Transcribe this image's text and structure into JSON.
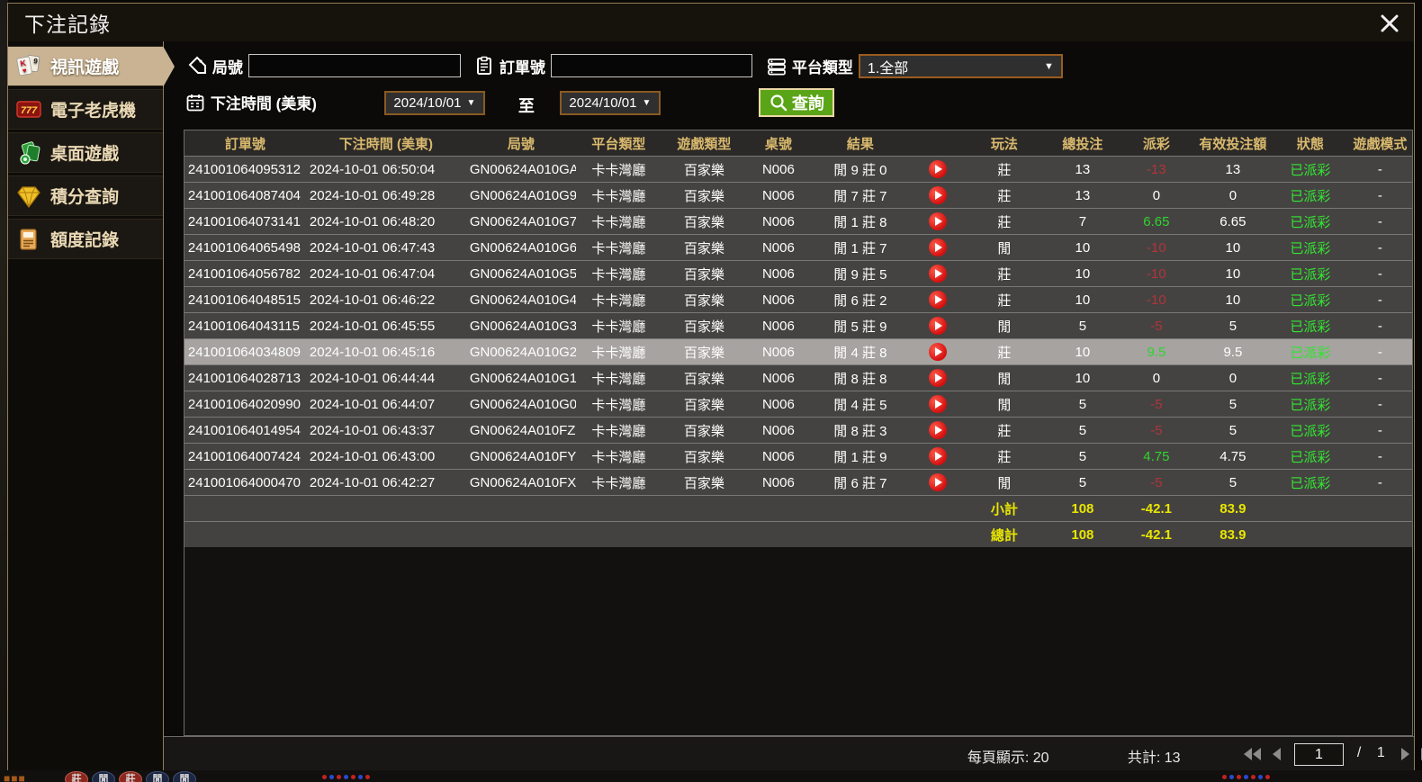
{
  "dialog": {
    "title": "下注記錄"
  },
  "sidebar": {
    "items": [
      {
        "label": "視訊遊戲",
        "icon": "cards-icon",
        "selected": true
      },
      {
        "label": "電子老虎機",
        "icon": "slots-777-icon",
        "selected": false
      },
      {
        "label": "桌面遊戲",
        "icon": "table-games-icon",
        "selected": false
      },
      {
        "label": "積分查詢",
        "icon": "points-diamond-icon",
        "selected": false
      },
      {
        "label": "額度記錄",
        "icon": "ledger-icon",
        "selected": false
      }
    ]
  },
  "filters": {
    "round_label": "局號",
    "round_value": "",
    "order_label": "訂單號",
    "order_value": "",
    "platform_label": "平台類型",
    "platform_value": "1.全部",
    "time_label": "下注時間 (美東)",
    "date_from": "2024/10/01",
    "to_label": "至",
    "date_to": "2024/10/01",
    "search_label": "查詢"
  },
  "table": {
    "headers": [
      "訂單號",
      "下注時間 (美東)",
      "局號",
      "平台類型",
      "遊戲類型",
      "桌號",
      "結果",
      "",
      "玩法",
      "總投注",
      "派彩",
      "有效投注額",
      "狀態",
      "遊戲模式"
    ],
    "rows": [
      {
        "order_no": "241001064095312",
        "bet_time": "2024-10-01 06:50:04",
        "round_no": "GN00624A010GA",
        "platform": "卡卡灣廳",
        "game_type": "百家樂",
        "table_no": "N006",
        "result": "閒 9 莊 0",
        "play_type": "莊",
        "total_bet": "13",
        "payout": "-13",
        "valid_bet": "13",
        "status": "已派彩",
        "mode": "-",
        "highlighted": false
      },
      {
        "order_no": "241001064087404",
        "bet_time": "2024-10-01 06:49:28",
        "round_no": "GN00624A010G9",
        "platform": "卡卡灣廳",
        "game_type": "百家樂",
        "table_no": "N006",
        "result": "閒 7 莊 7",
        "play_type": "莊",
        "total_bet": "13",
        "payout": "0",
        "valid_bet": "0",
        "status": "已派彩",
        "mode": "-",
        "highlighted": false
      },
      {
        "order_no": "241001064073141",
        "bet_time": "2024-10-01 06:48:20",
        "round_no": "GN00624A010G7",
        "platform": "卡卡灣廳",
        "game_type": "百家樂",
        "table_no": "N006",
        "result": "閒 1 莊 8",
        "play_type": "莊",
        "total_bet": "7",
        "payout": "6.65",
        "valid_bet": "6.65",
        "status": "已派彩",
        "mode": "-",
        "highlighted": false
      },
      {
        "order_no": "241001064065498",
        "bet_time": "2024-10-01 06:47:43",
        "round_no": "GN00624A010G6",
        "platform": "卡卡灣廳",
        "game_type": "百家樂",
        "table_no": "N006",
        "result": "閒 1 莊 7",
        "play_type": "閒",
        "total_bet": "10",
        "payout": "-10",
        "valid_bet": "10",
        "status": "已派彩",
        "mode": "-",
        "highlighted": false
      },
      {
        "order_no": "241001064056782",
        "bet_time": "2024-10-01 06:47:04",
        "round_no": "GN00624A010G5",
        "platform": "卡卡灣廳",
        "game_type": "百家樂",
        "table_no": "N006",
        "result": "閒 9 莊 5",
        "play_type": "莊",
        "total_bet": "10",
        "payout": "-10",
        "valid_bet": "10",
        "status": "已派彩",
        "mode": "-",
        "highlighted": false
      },
      {
        "order_no": "241001064048515",
        "bet_time": "2024-10-01 06:46:22",
        "round_no": "GN00624A010G4",
        "platform": "卡卡灣廳",
        "game_type": "百家樂",
        "table_no": "N006",
        "result": "閒 6 莊 2",
        "play_type": "莊",
        "total_bet": "10",
        "payout": "-10",
        "valid_bet": "10",
        "status": "已派彩",
        "mode": "-",
        "highlighted": false
      },
      {
        "order_no": "241001064043115",
        "bet_time": "2024-10-01 06:45:55",
        "round_no": "GN00624A010G3",
        "platform": "卡卡灣廳",
        "game_type": "百家樂",
        "table_no": "N006",
        "result": "閒 5 莊 9",
        "play_type": "閒",
        "total_bet": "5",
        "payout": "-5",
        "valid_bet": "5",
        "status": "已派彩",
        "mode": "-",
        "highlighted": false
      },
      {
        "order_no": "241001064034809",
        "bet_time": "2024-10-01 06:45:16",
        "round_no": "GN00624A010G2",
        "platform": "卡卡灣廳",
        "game_type": "百家樂",
        "table_no": "N006",
        "result": "閒 4 莊 8",
        "play_type": "莊",
        "total_bet": "10",
        "payout": "9.5",
        "valid_bet": "9.5",
        "status": "已派彩",
        "mode": "-",
        "highlighted": true
      },
      {
        "order_no": "241001064028713",
        "bet_time": "2024-10-01 06:44:44",
        "round_no": "GN00624A010G1",
        "platform": "卡卡灣廳",
        "game_type": "百家樂",
        "table_no": "N006",
        "result": "閒 8 莊 8",
        "play_type": "閒",
        "total_bet": "10",
        "payout": "0",
        "valid_bet": "0",
        "status": "已派彩",
        "mode": "-",
        "highlighted": false
      },
      {
        "order_no": "241001064020990",
        "bet_time": "2024-10-01 06:44:07",
        "round_no": "GN00624A010G0",
        "platform": "卡卡灣廳",
        "game_type": "百家樂",
        "table_no": "N006",
        "result": "閒 4 莊 5",
        "play_type": "閒",
        "total_bet": "5",
        "payout": "-5",
        "valid_bet": "5",
        "status": "已派彩",
        "mode": "-",
        "highlighted": false
      },
      {
        "order_no": "241001064014954",
        "bet_time": "2024-10-01 06:43:37",
        "round_no": "GN00624A010FZ",
        "platform": "卡卡灣廳",
        "game_type": "百家樂",
        "table_no": "N006",
        "result": "閒 8 莊 3",
        "play_type": "莊",
        "total_bet": "5",
        "payout": "-5",
        "valid_bet": "5",
        "status": "已派彩",
        "mode": "-",
        "highlighted": false
      },
      {
        "order_no": "241001064007424",
        "bet_time": "2024-10-01 06:43:00",
        "round_no": "GN00624A010FY",
        "platform": "卡卡灣廳",
        "game_type": "百家樂",
        "table_no": "N006",
        "result": "閒 1 莊 9",
        "play_type": "莊",
        "total_bet": "5",
        "payout": "4.75",
        "valid_bet": "4.75",
        "status": "已派彩",
        "mode": "-",
        "highlighted": false
      },
      {
        "order_no": "241001064000470",
        "bet_time": "2024-10-01 06:42:27",
        "round_no": "GN00624A010FX",
        "platform": "卡卡灣廳",
        "game_type": "百家樂",
        "table_no": "N006",
        "result": "閒 6 莊 7",
        "play_type": "閒",
        "total_bet": "5",
        "payout": "-5",
        "valid_bet": "5",
        "status": "已派彩",
        "mode": "-",
        "highlighted": false
      }
    ],
    "subtotal": {
      "label": "小計",
      "total_bet": "108",
      "payout": "-42.1",
      "valid_bet": "83.9"
    },
    "grand_total": {
      "label": "總計",
      "total_bet": "108",
      "payout": "-42.1",
      "valid_bet": "83.9"
    }
  },
  "footer": {
    "per_page": "每頁顯示: 20",
    "total_count": "共計: 13",
    "page": "1",
    "page_separator": "/",
    "page_total": "1"
  },
  "colors": {
    "accent_gold": "#d9b96d",
    "selected_tan": "#c9b392",
    "positive_green": "#2ed52e",
    "negative_red": "#b0343c",
    "status_green": "#33e633",
    "sum_yellow": "#e8e600",
    "search_green": "#5aa517"
  },
  "background": {
    "badges": [
      "莊",
      "閒",
      "莊",
      "閒",
      "閒"
    ]
  }
}
